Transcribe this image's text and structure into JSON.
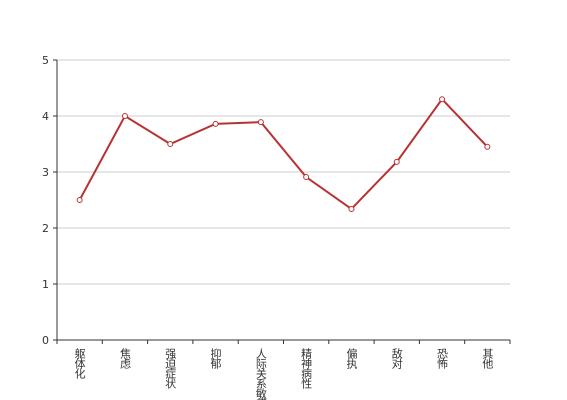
{
  "chart_data": {
    "type": "line",
    "categories": [
      "躯体化",
      "焦虑",
      "强迫症状",
      "抑郁",
      "人际关系敏感",
      "精神病性",
      "偏执",
      "敌对",
      "恐怖",
      "其他"
    ],
    "values": [
      2.5,
      4.0,
      3.5,
      3.86,
      3.89,
      2.91,
      2.34,
      3.18,
      4.3,
      3.45
    ],
    "color": "#b83232",
    "ylim": [
      0,
      5
    ],
    "yticks": [
      0,
      1,
      2,
      3,
      4,
      5
    ],
    "grid": true
  }
}
